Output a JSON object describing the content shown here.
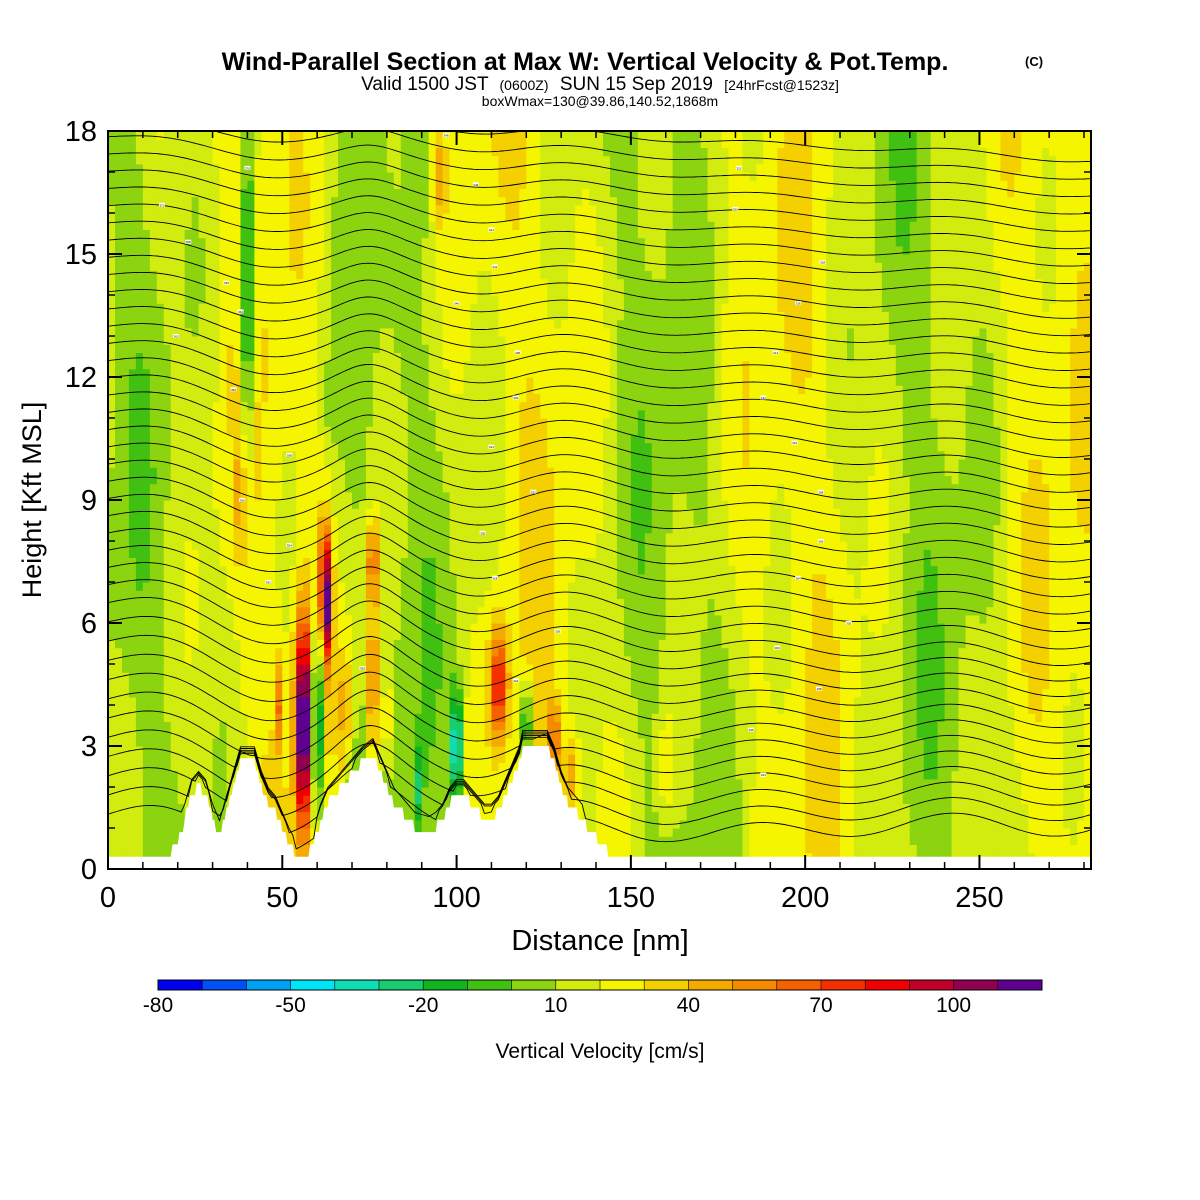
{
  "chart_data": {
    "type": "heatmap",
    "title": "Wind-Parallel Section at Max W: Vertical Velocity & Pot.Temp.",
    "title_mark": "(C)",
    "subtitle_main": "Valid 1500 JST",
    "subtitle_utc": "(0600Z)",
    "subtitle_date": "SUN 15 Sep 2019",
    "subtitle_fcst": "[24hrFcst@1523z]",
    "subtitle2": "boxWmax=130@39.86,140.52,1868m",
    "xlabel": "Distance [nm]",
    "ylabel": "Height [Kft MSL]",
    "xlim": [
      0,
      282
    ],
    "ylim": [
      0,
      18
    ],
    "xticks": [
      "0",
      "50",
      "100",
      "150",
      "200",
      "250"
    ],
    "yticks": [
      "0",
      "3",
      "6",
      "9",
      "12",
      "15",
      "18"
    ],
    "colorbar_label": "Vertical Velocity [cm/s]",
    "colorbar_ticks": [
      "-80",
      "-50",
      "-20",
      "10",
      "40",
      "70",
      "100"
    ],
    "colorbar_colors": [
      "#0000ee",
      "#0050f5",
      "#00a0f5",
      "#00e5f5",
      "#10dcb4",
      "#18cc70",
      "#10b420",
      "#40c010",
      "#8cd410",
      "#d2ec10",
      "#f5f500",
      "#f5d000",
      "#f5aa00",
      "#f58a00",
      "#f56000",
      "#f53000",
      "#f00000",
      "#c00028",
      "#900050",
      "#600090"
    ],
    "terrain": [
      [
        0,
        0.3
      ],
      [
        17,
        0.3
      ],
      [
        20,
        0.6
      ],
      [
        22,
        1.2
      ],
      [
        24,
        1.8
      ],
      [
        26,
        2.0
      ],
      [
        28,
        1.8
      ],
      [
        30,
        1.2
      ],
      [
        32,
        0.8
      ],
      [
        34,
        1.4
      ],
      [
        36,
        2.0
      ],
      [
        38,
        2.6
      ],
      [
        42,
        2.6
      ],
      [
        44,
        2.0
      ],
      [
        46,
        1.6
      ],
      [
        48,
        1.4
      ],
      [
        50,
        1.0
      ],
      [
        52,
        0.6
      ],
      [
        54,
        0.3
      ],
      [
        57,
        0.3
      ],
      [
        59,
        0.6
      ],
      [
        61,
        1.2
      ],
      [
        63,
        1.6
      ],
      [
        65,
        1.8
      ],
      [
        67,
        2.0
      ],
      [
        69,
        2.2
      ],
      [
        71,
        2.4
      ],
      [
        73,
        2.6
      ],
      [
        76,
        2.8
      ],
      [
        78,
        2.4
      ],
      [
        80,
        2.0
      ],
      [
        82,
        1.6
      ],
      [
        84,
        1.4
      ],
      [
        86,
        1.2
      ],
      [
        88,
        1.0
      ],
      [
        92,
        0.9
      ],
      [
        94,
        1.0
      ],
      [
        96,
        1.2
      ],
      [
        98,
        1.6
      ],
      [
        100,
        1.8
      ],
      [
        102,
        1.8
      ],
      [
        104,
        1.6
      ],
      [
        106,
        1.4
      ],
      [
        108,
        1.2
      ],
      [
        110,
        1.2
      ],
      [
        112,
        1.4
      ],
      [
        114,
        1.8
      ],
      [
        116,
        2.2
      ],
      [
        118,
        2.6
      ],
      [
        119,
        3.0
      ],
      [
        126,
        3.0
      ],
      [
        128,
        2.6
      ],
      [
        130,
        2.0
      ],
      [
        132,
        1.6
      ],
      [
        134,
        1.4
      ],
      [
        136,
        1.2
      ],
      [
        138,
        0.9
      ],
      [
        142,
        0.6
      ],
      [
        144,
        0.3
      ],
      [
        282,
        0.3
      ]
    ],
    "theta_min": 294,
    "theta_max": 374,
    "theta_step": 2,
    "theta_labels": [
      {
        "x": 15.5,
        "y": 16.2,
        "text": "372"
      },
      {
        "x": 40,
        "y": 17.1,
        "text": "370"
      },
      {
        "x": 23,
        "y": 15.3,
        "text": "368"
      },
      {
        "x": 34,
        "y": 14.3,
        "text": "366"
      },
      {
        "x": 38,
        "y": 13.6,
        "text": "364"
      },
      {
        "x": 19.5,
        "y": 13.0,
        "text": "362"
      },
      {
        "x": 36,
        "y": 11.7,
        "text": "360"
      },
      {
        "x": 52,
        "y": 10.1,
        "text": "358"
      },
      {
        "x": 38.5,
        "y": 9.0,
        "text": "356"
      },
      {
        "x": 52,
        "y": 7.9,
        "text": "354"
      },
      {
        "x": 46,
        "y": 7.0,
        "text": "352"
      },
      {
        "x": 73,
        "y": 4.9,
        "text": "350"
      },
      {
        "x": 97,
        "y": 17.9,
        "text": "348"
      },
      {
        "x": 105.5,
        "y": 16.7,
        "text": "346"
      },
      {
        "x": 110,
        "y": 15.6,
        "text": "344"
      },
      {
        "x": 111,
        "y": 14.7,
        "text": "342"
      },
      {
        "x": 100,
        "y": 13.8,
        "text": "340"
      },
      {
        "x": 117.5,
        "y": 12.6,
        "text": "338"
      },
      {
        "x": 117,
        "y": 11.5,
        "text": "336"
      },
      {
        "x": 110,
        "y": 10.3,
        "text": "334"
      },
      {
        "x": 122,
        "y": 9.2,
        "text": "332"
      },
      {
        "x": 107.5,
        "y": 8.2,
        "text": "330"
      },
      {
        "x": 111,
        "y": 7.1,
        "text": "328"
      },
      {
        "x": 129,
        "y": 5.8,
        "text": "326"
      },
      {
        "x": 117,
        "y": 4.6,
        "text": "324"
      },
      {
        "x": 181,
        "y": 17.1,
        "text": "322"
      },
      {
        "x": 180,
        "y": 16.1,
        "text": "320"
      },
      {
        "x": 205,
        "y": 14.8,
        "text": "318"
      },
      {
        "x": 198,
        "y": 13.8,
        "text": "316"
      },
      {
        "x": 191.5,
        "y": 12.6,
        "text": "314"
      },
      {
        "x": 188,
        "y": 11.5,
        "text": "312"
      },
      {
        "x": 197,
        "y": 10.4,
        "text": "310"
      },
      {
        "x": 204.5,
        "y": 9.2,
        "text": "308"
      },
      {
        "x": 204.5,
        "y": 8.0,
        "text": "306"
      },
      {
        "x": 198,
        "y": 7.1,
        "text": "304"
      },
      {
        "x": 212.5,
        "y": 6.0,
        "text": "302"
      },
      {
        "x": 192,
        "y": 5.4,
        "text": "300"
      },
      {
        "x": 204,
        "y": 4.4,
        "text": "298"
      },
      {
        "x": 184.5,
        "y": 3.4,
        "text": "296"
      },
      {
        "x": 188,
        "y": 2.3,
        "text": "294"
      }
    ]
  }
}
